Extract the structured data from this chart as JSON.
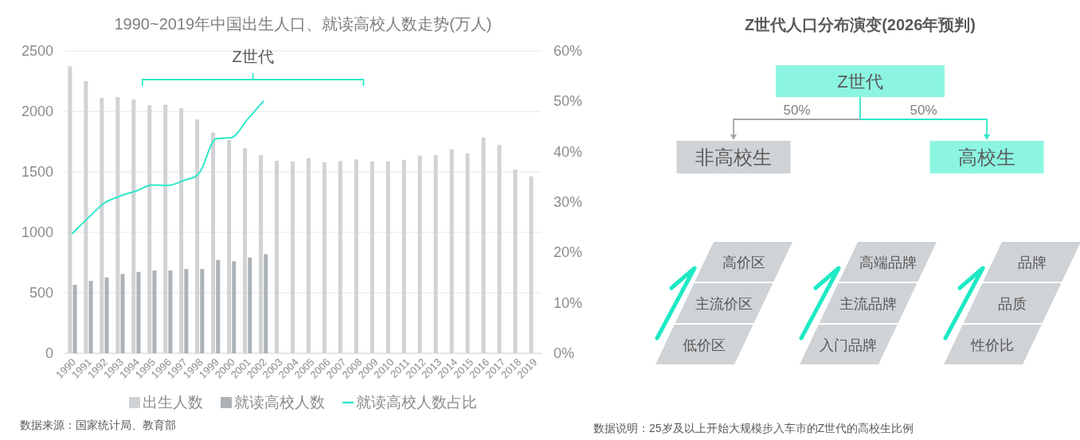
{
  "chart_data": [
    {
      "type": "bar",
      "title": "1990~2019年中国出生人口、就读高校人数走势(万人)",
      "categories": [
        "1990",
        "1991",
        "1992",
        "1993",
        "1994",
        "1995",
        "1996",
        "1997",
        "1998",
        "1999",
        "2000",
        "2001",
        "2002",
        "2003",
        "2004",
        "2005",
        "2006",
        "2007",
        "2008",
        "2009",
        "2010",
        "2011",
        "2012",
        "2013",
        "2014",
        "2015",
        "2016",
        "2017",
        "2018",
        "2019"
      ],
      "series": [
        {
          "name": "出生人数",
          "color": "#d0d3d6",
          "values": [
            2373,
            2250,
            2112,
            2118,
            2097,
            2051,
            2055,
            2026,
            1934,
            1825,
            1763,
            1695,
            1638,
            1592,
            1586,
            1612,
            1579,
            1590,
            1603,
            1586,
            1586,
            1599,
            1634,
            1638,
            1686,
            1653,
            1783,
            1722,
            1520,
            1463
          ]
        },
        {
          "name": "就读高校人数",
          "color": "#adb2b6",
          "values": [
            566,
            599,
            627,
            656,
            673,
            684,
            684,
            697,
            697,
            772,
            761,
            792,
            820,
            null,
            null,
            null,
            null,
            null,
            null,
            null,
            null,
            null,
            null,
            null,
            null,
            null,
            null,
            null,
            null,
            null
          ]
        },
        {
          "name": "就读高校人数占比",
          "type": "line",
          "axis": "y2",
          "color": "#2ee8c8",
          "values": [
            23.8,
            26.9,
            29.8,
            31.2,
            32.2,
            33.4,
            33.3,
            34.3,
            35.9,
            42.5,
            42.8,
            46.4,
            50.0,
            null,
            null,
            null,
            null,
            null,
            null,
            null,
            null,
            null,
            null,
            null,
            null,
            null,
            null,
            null,
            null,
            null
          ]
        }
      ],
      "ylim": [
        0,
        2500
      ],
      "yticks": [
        0,
        500,
        1000,
        1500,
        2000,
        2500
      ],
      "y2lim": [
        0,
        60
      ],
      "y2ticks": [
        {
          "value": 0,
          "label": "0%"
        },
        {
          "value": 10,
          "label": "10%"
        },
        {
          "value": 20,
          "label": "20%"
        },
        {
          "value": 30,
          "label": "30%"
        },
        {
          "value": 40,
          "label": "40%"
        },
        {
          "value": 50,
          "label": "50%"
        },
        {
          "value": 60,
          "label": "60%"
        }
      ],
      "grid": "y",
      "legend": "bottom",
      "annotations": [
        "Z世代",
        "数据来源：国家统计局、教育部"
      ]
    },
    {
      "type": "other",
      "title": "Z世代人口分布演变(2026年预判)",
      "categories": [
        "非高校生",
        "高校生"
      ],
      "values": [
        50,
        50
      ],
      "value_labels": [
        "50%",
        "50%"
      ],
      "colors": [
        "#d0d3d6",
        "#8cf5e1"
      ],
      "annotations": [
        "Z世代",
        "高价区",
        "主流价区",
        "低价区",
        "高端品牌",
        "主流品牌",
        "入门品牌",
        "品牌",
        "品质",
        "性价比",
        "数据说明：25岁及以上开始大规模步入车市的Z世代的高校生比例"
      ]
    }
  ]
}
